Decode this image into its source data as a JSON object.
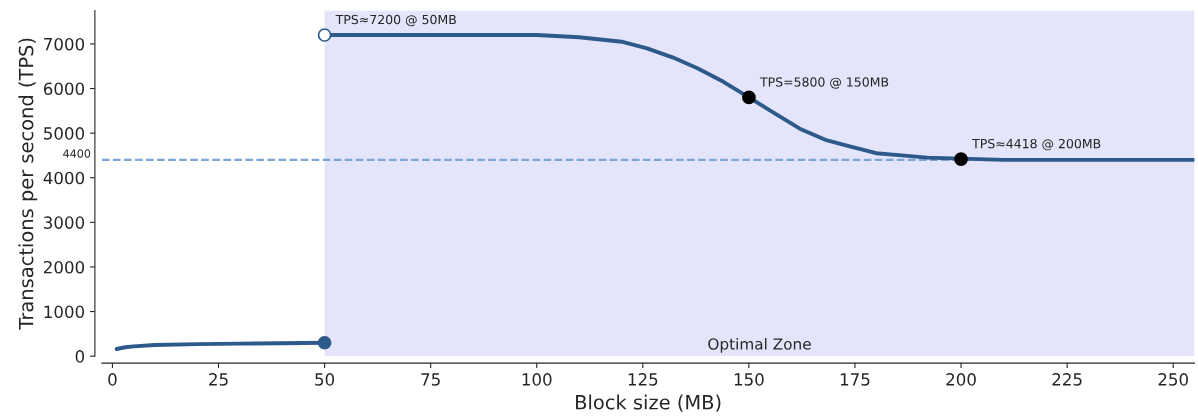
{
  "chart_data": {
    "type": "line",
    "xlabel": "Block size (MB)",
    "ylabel": "Transactions per second (TPS)",
    "xlim": [
      -2.5,
      255
    ],
    "ylim": [
      0,
      7750
    ],
    "xticks": [
      0,
      25,
      50,
      75,
      100,
      125,
      150,
      175,
      200,
      225,
      250
    ],
    "yticks": [
      0,
      1000,
      2000,
      3000,
      4000,
      5000,
      6000,
      7000
    ],
    "grid": false,
    "legend": false,
    "line_style": "solid",
    "series": [
      {
        "color": "#2d5a8a",
        "marker": "none",
        "x": [
          1,
          3,
          5,
          10,
          20,
          30,
          40,
          50
        ],
        "values": [
          160,
          200,
          220,
          250,
          270,
          280,
          290,
          300
        ]
      },
      {
        "color": "#2d5a8a",
        "marker": "none",
        "x": [
          50,
          75,
          91,
          100,
          110,
          115,
          120,
          126,
          132,
          138,
          144,
          150,
          156,
          162,
          168,
          174,
          180,
          186,
          192,
          210,
          225,
          255
        ],
        "values": [
          7200,
          7200,
          7200,
          7200,
          7150,
          7100,
          7050,
          6900,
          6700,
          6450,
          6150,
          5800,
          5450,
          5100,
          4850,
          4700,
          4550,
          4500,
          4450,
          4400,
          4400,
          4400
        ]
      },
      {
        "type": "scatter",
        "color": "#2d5a8a",
        "marker": "circle",
        "x": [
          50
        ],
        "values": [
          300
        ]
      },
      {
        "type": "scatter",
        "color": "#ffffff",
        "marker": "circle",
        "x": [
          50
        ],
        "values": [
          7200
        ]
      },
      {
        "type": "scatter",
        "color": "#000000",
        "marker": "circle",
        "x": [
          150,
          200
        ],
        "values": [
          5800,
          4418
        ]
      }
    ],
    "ref_lines": [
      {
        "axis": "y",
        "value": 4400,
        "label": "4400",
        "color": "#7aa7d8",
        "line_style": "dashed"
      }
    ],
    "bands": [
      {
        "axis": "x",
        "from": 50,
        "to": 255,
        "label": "Optimal Zone",
        "color": "#e4e4fb"
      }
    ],
    "annotations": [
      {
        "text": "TPS≈7200 @ 50MB",
        "x": 50,
        "y": 7200
      },
      {
        "text": "TPS=5800 @ 150MB",
        "x": 150,
        "y": 5800
      },
      {
        "text": "TPS≈4418 @ 200MB",
        "x": 200,
        "y": 4418
      }
    ]
  }
}
